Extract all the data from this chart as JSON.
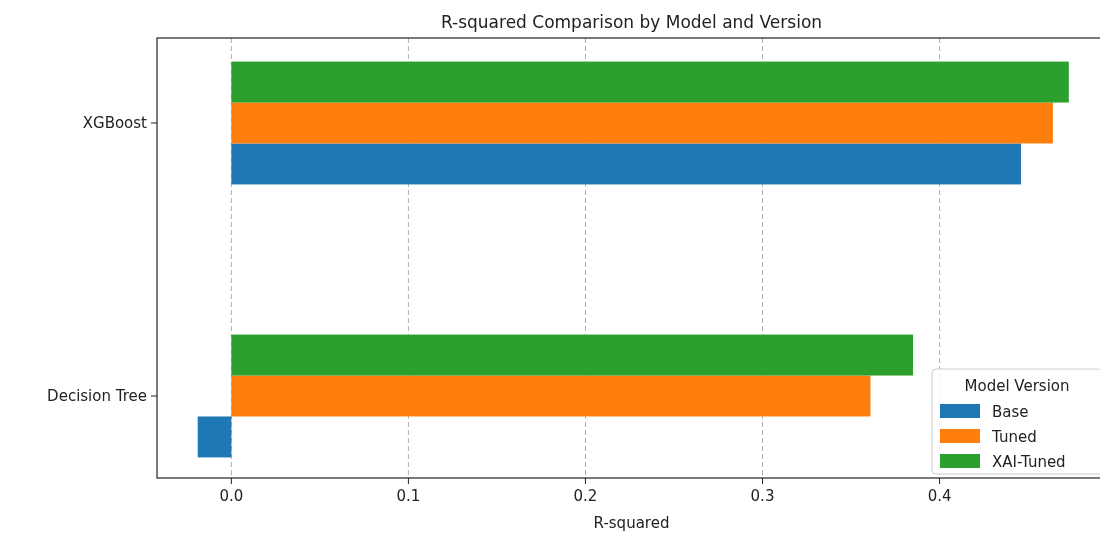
{
  "chart_data": {
    "type": "bar",
    "orientation": "horizontal",
    "title": "R-squared Comparison by Model and Version",
    "xlabel": "R-squared",
    "legend_title": "Model Version",
    "categories": [
      "XGBoost",
      "Decision Tree"
    ],
    "series": [
      {
        "name": "Base",
        "color": "#1f77b4",
        "values": [
          0.446,
          -0.019
        ]
      },
      {
        "name": "Tuned",
        "color": "#ff7f0e",
        "values": [
          0.464,
          0.361
        ]
      },
      {
        "name": "XAI-Tuned",
        "color": "#2ca02c",
        "values": [
          0.473,
          0.385
        ]
      }
    ],
    "xlim": [
      -0.042,
      0.494
    ],
    "xticks": [
      {
        "value": 0,
        "label": "0.0"
      },
      0.1,
      0.2,
      0.3,
      0.4
    ],
    "grid": "x",
    "legend": "bottom right"
  }
}
